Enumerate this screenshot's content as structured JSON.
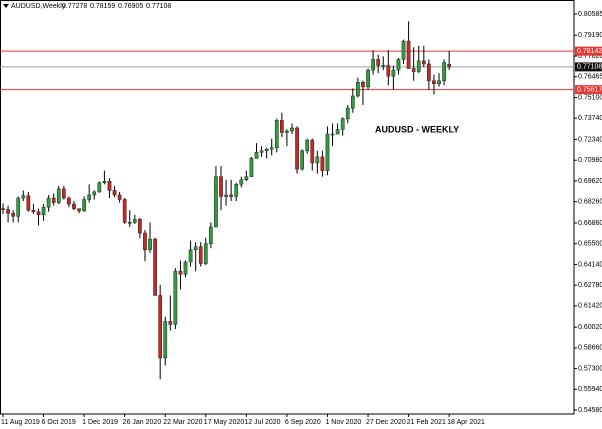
{
  "chart_data": {
    "type": "candlestick",
    "symbol": "AUDUSD,Weekly",
    "ohlc_header": [
      0.77278,
      0.78159,
      0.76905,
      0.77108
    ],
    "annotation": "AUDUSD - WEEKLY",
    "up_color": "#2e9e3e",
    "down_color": "#c62828",
    "categories": [
      "11 Aug 2019",
      null,
      null,
      null,
      null,
      null,
      null,
      null,
      "6 Oct 2019",
      null,
      null,
      null,
      null,
      null,
      null,
      null,
      "1 Dec 2019",
      null,
      null,
      null,
      null,
      null,
      null,
      null,
      "26 Jan 2020",
      null,
      null,
      null,
      null,
      null,
      null,
      null,
      "22 Mar 2020",
      null,
      null,
      null,
      null,
      null,
      null,
      null,
      "17 May 2020",
      null,
      null,
      null,
      null,
      null,
      null,
      null,
      "12 Jul 2020",
      null,
      null,
      null,
      null,
      null,
      null,
      null,
      "6 Sep 2020",
      null,
      null,
      null,
      null,
      null,
      null,
      null,
      "1 Nov 2020",
      null,
      null,
      null,
      null,
      null,
      null,
      null,
      "27 Dec 2020",
      null,
      null,
      null,
      null,
      null,
      null,
      null,
      "21 Feb 2021",
      null,
      null,
      null,
      null,
      null,
      null,
      null,
      "18 Apr 2021"
    ],
    "open": [
      0.678,
      0.6775,
      0.675,
      0.673,
      0.685,
      0.6865,
      0.677,
      0.676,
      0.674,
      0.679,
      0.685,
      0.682,
      0.691,
      0.685,
      0.681,
      0.678,
      0.6765,
      0.684,
      0.687,
      0.689,
      0.695,
      0.696,
      0.69,
      0.687,
      0.684,
      0.669,
      0.669,
      0.671,
      0.662,
      0.651,
      0.658,
      0.621,
      0.58,
      0.604,
      0.602,
      0.637,
      0.635,
      0.643,
      0.651,
      0.653,
      0.642,
      0.655,
      0.666,
      0.699,
      0.686,
      0.687,
      0.686,
      0.694,
      0.697,
      0.699,
      0.711,
      0.715,
      0.716,
      0.717,
      0.718,
      0.736,
      0.728,
      0.729,
      0.731,
      0.704,
      0.716,
      0.723,
      0.708,
      0.712,
      0.703,
      0.727,
      0.727,
      0.73,
      0.737,
      0.744,
      0.752,
      0.761,
      0.758,
      0.769,
      0.776,
      0.772,
      0.772,
      0.765,
      0.769,
      0.776,
      0.788,
      0.77,
      0.768,
      0.775,
      0.773,
      0.762,
      0.76,
      0.762,
      0.77278
    ],
    "high": [
      0.6815,
      0.68,
      0.677,
      0.686,
      0.69,
      0.689,
      0.681,
      0.678,
      0.681,
      0.687,
      0.688,
      0.693,
      0.693,
      0.686,
      0.683,
      0.678,
      0.686,
      0.694,
      0.69,
      0.696,
      0.703,
      0.698,
      0.693,
      0.689,
      0.685,
      0.677,
      0.674,
      0.672,
      0.664,
      0.669,
      0.659,
      0.628,
      0.607,
      0.621,
      0.639,
      0.644,
      0.644,
      0.657,
      0.656,
      0.656,
      0.659,
      0.669,
      0.706,
      0.706,
      0.697,
      0.697,
      0.695,
      0.699,
      0.703,
      0.712,
      0.721,
      0.719,
      0.718,
      0.724,
      0.737,
      0.741,
      0.73,
      0.734,
      0.732,
      0.717,
      0.724,
      0.724,
      0.716,
      0.716,
      0.732,
      0.734,
      0.734,
      0.738,
      0.746,
      0.757,
      0.764,
      0.762,
      0.77,
      0.782,
      0.779,
      0.778,
      0.782,
      0.772,
      0.777,
      0.789,
      0.801,
      0.784,
      0.785,
      0.785,
      0.776,
      0.766,
      0.767,
      0.776,
      0.78159
    ],
    "low": [
      0.6745,
      0.669,
      0.669,
      0.669,
      0.683,
      0.676,
      0.6745,
      0.667,
      0.67,
      0.676,
      0.68,
      0.681,
      0.684,
      0.679,
      0.677,
      0.675,
      0.676,
      0.682,
      0.684,
      0.6885,
      0.694,
      0.685,
      0.6855,
      0.682,
      0.668,
      0.666,
      0.668,
      0.6585,
      0.6435,
      0.649,
      0.621,
      0.566,
      0.575,
      0.598,
      0.599,
      0.625,
      0.633,
      0.64,
      0.637,
      0.64,
      0.641,
      0.652,
      0.666,
      0.677,
      0.68,
      0.683,
      0.683,
      0.692,
      0.696,
      0.699,
      0.711,
      0.712,
      0.711,
      0.713,
      0.715,
      0.725,
      0.719,
      0.727,
      0.701,
      0.703,
      0.714,
      0.703,
      0.701,
      0.699,
      0.7,
      0.719,
      0.727,
      0.726,
      0.734,
      0.741,
      0.751,
      0.746,
      0.756,
      0.766,
      0.767,
      0.769,
      0.759,
      0.756,
      0.766,
      0.773,
      0.77,
      0.762,
      0.767,
      0.771,
      0.756,
      0.753,
      0.758,
      0.759,
      0.76905
    ],
    "close": [
      0.6775,
      0.675,
      0.673,
      0.685,
      0.6865,
      0.677,
      0.676,
      0.674,
      0.679,
      0.685,
      0.682,
      0.691,
      0.685,
      0.681,
      0.678,
      0.6765,
      0.684,
      0.687,
      0.689,
      0.695,
      0.696,
      0.69,
      0.687,
      0.684,
      0.669,
      0.669,
      0.671,
      0.662,
      0.651,
      0.658,
      0.621,
      0.58,
      0.604,
      0.602,
      0.637,
      0.635,
      0.643,
      0.651,
      0.653,
      0.642,
      0.655,
      0.666,
      0.699,
      0.686,
      0.687,
      0.686,
      0.694,
      0.697,
      0.699,
      0.711,
      0.715,
      0.716,
      0.717,
      0.718,
      0.736,
      0.728,
      0.729,
      0.731,
      0.704,
      0.716,
      0.723,
      0.708,
      0.712,
      0.703,
      0.727,
      0.727,
      0.73,
      0.737,
      0.744,
      0.752,
      0.761,
      0.758,
      0.769,
      0.776,
      0.772,
      0.772,
      0.765,
      0.769,
      0.776,
      0.788,
      0.77,
      0.768,
      0.775,
      0.773,
      0.762,
      0.76,
      0.762,
      0.774,
      0.77108
    ],
    "ylim": [
      0.5432,
      0.815
    ],
    "yticks": [
      0.80585,
      {
        "value": 0.7919,
        "label": "0.79190"
      },
      {
        "value": 0.7782,
        "label": "0.77820"
      },
      0.76465,
      {
        "value": 0.751,
        "label": "0.75100"
      },
      {
        "value": 0.7374,
        "label": "0.73740"
      },
      {
        "value": 0.7234,
        "label": "0.72340"
      },
      {
        "value": 0.7098,
        "label": "0.70980"
      },
      {
        "value": 0.6962,
        "label": "0.69620"
      },
      {
        "value": 0.6826,
        "label": "0.68260"
      },
      {
        "value": 0.6686,
        "label": "0.66860"
      },
      {
        "value": 0.655,
        "label": "0.65500"
      },
      {
        "value": 0.6414,
        "label": "0.64140"
      },
      {
        "value": 0.6278,
        "label": "0.62780"
      },
      {
        "value": 0.6142,
        "label": "0.61420"
      },
      {
        "value": 0.6002,
        "label": "0.60020"
      },
      {
        "value": 0.5866,
        "label": "0.58660"
      },
      {
        "value": 0.573,
        "label": "0.57300"
      },
      {
        "value": 0.5594,
        "label": "0.55940"
      },
      {
        "value": 0.5458,
        "label": "0.54580"
      }
    ],
    "levels": [
      {
        "value": 0.78142,
        "color": "#e53935",
        "box_color": "#e53935"
      },
      {
        "value": 0.75617,
        "color": "#e53935",
        "box_color": "#e53935"
      },
      {
        "value": 0.77108,
        "color": "#9e9e9e",
        "box_color": "#111111"
      }
    ]
  }
}
